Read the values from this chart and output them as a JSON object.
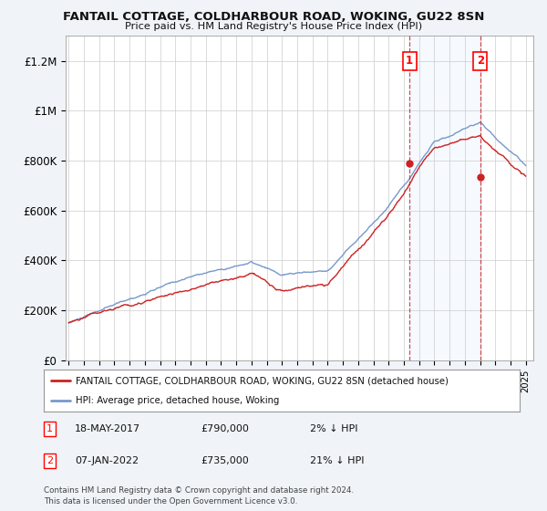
{
  "title": "FANTAIL COTTAGE, COLDHARBOUR ROAD, WOKING, GU22 8SN",
  "subtitle": "Price paid vs. HM Land Registry's House Price Index (HPI)",
  "ylabel_ticks": [
    "£0",
    "£200K",
    "£400K",
    "£600K",
    "£800K",
    "£1M",
    "£1.2M"
  ],
  "ytick_values": [
    0,
    200000,
    400000,
    600000,
    800000,
    1000000,
    1200000
  ],
  "ylim": [
    0,
    1300000
  ],
  "xlim_start": 1994.8,
  "xlim_end": 2025.5,
  "line_color_hpi": "#7799cc",
  "line_color_property": "#cc2222",
  "marker1_x": 2017.37,
  "marker1_y": 790000,
  "marker2_x": 2022.02,
  "marker2_y": 735000,
  "legend_property": "FANTAIL COTTAGE, COLDHARBOUR ROAD, WOKING, GU22 8SN (detached house)",
  "legend_hpi": "HPI: Average price, detached house, Woking",
  "footnote": "Contains HM Land Registry data © Crown copyright and database right 2024.\nThis data is licensed under the Open Government Licence v3.0.",
  "background_color": "#f0f4f8",
  "plot_bg_color": "#ffffff",
  "grid_color": "#cccccc",
  "dashed_line_color": "#cc2222",
  "span_color": "#ddeeff"
}
